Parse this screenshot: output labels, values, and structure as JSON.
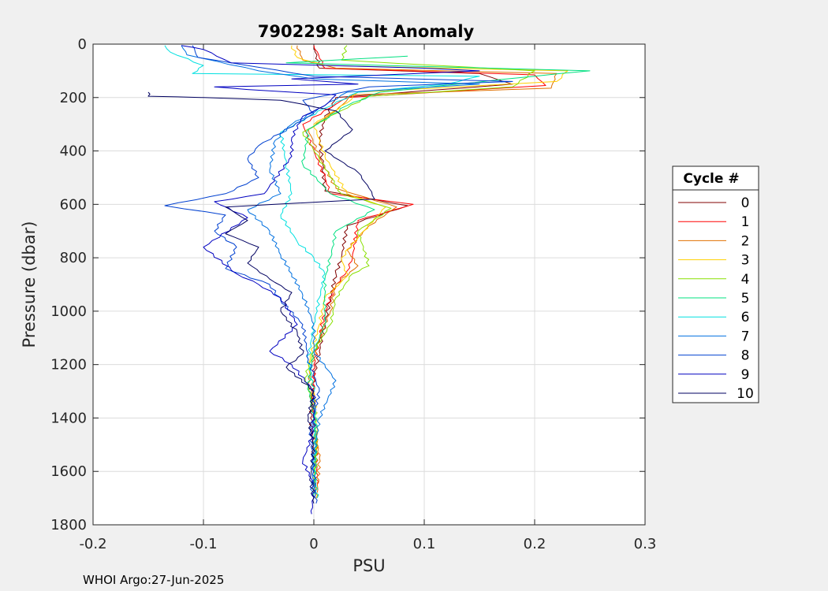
{
  "chart_data": {
    "type": "line",
    "title": "7902298: Salt Anomaly",
    "xlabel": "PSU",
    "ylabel": "Pressure (dbar)",
    "xlim": [
      -0.2,
      0.3
    ],
    "ylim": [
      0,
      1800
    ],
    "y_reversed": true,
    "grid": true,
    "xticks": [
      "-0.2",
      "-0.1",
      "0",
      "0.1",
      "0.2",
      "0.3"
    ],
    "yticks": [
      "0",
      "200",
      "400",
      "600",
      "800",
      "1000",
      "1200",
      "1400",
      "1600",
      "1800"
    ],
    "legend": {
      "title": "Cycle #",
      "placement": "right"
    },
    "series": [
      {
        "name": "0",
        "color": "#800000",
        "points": [
          [
            0.0,
            5
          ],
          [
            0.005,
            90
          ],
          [
            0.15,
            110
          ],
          [
            0.18,
            150
          ],
          [
            0.02,
            200
          ],
          [
            0.01,
            280
          ],
          [
            0.005,
            350
          ],
          [
            0.008,
            450
          ],
          [
            0.01,
            550
          ],
          [
            0.085,
            605
          ],
          [
            0.03,
            680
          ],
          [
            0.025,
            800
          ],
          [
            0.02,
            860
          ],
          [
            0.015,
            950
          ],
          [
            0.01,
            1050
          ],
          [
            0.005,
            1150
          ],
          [
            0.0,
            1250
          ],
          [
            -0.003,
            1400
          ],
          [
            0.0,
            1550
          ],
          [
            0.002,
            1700
          ]
        ]
      },
      {
        "name": "1",
        "color": "#ff0000",
        "points": [
          [
            0.0,
            5
          ],
          [
            0.01,
            90
          ],
          [
            0.2,
            115
          ],
          [
            0.21,
            155
          ],
          [
            0.03,
            200
          ],
          [
            -0.01,
            300
          ],
          [
            0.0,
            400
          ],
          [
            0.01,
            500
          ],
          [
            0.015,
            560
          ],
          [
            0.09,
            600
          ],
          [
            0.04,
            660
          ],
          [
            0.035,
            800
          ],
          [
            0.03,
            850
          ],
          [
            0.02,
            900
          ],
          [
            0.01,
            1000
          ],
          [
            0.005,
            1100
          ],
          [
            0.0,
            1200
          ],
          [
            0.0,
            1350
          ],
          [
            0.002,
            1500
          ],
          [
            0.003,
            1650
          ]
        ]
      },
      {
        "name": "2",
        "color": "#e07000",
        "points": [
          [
            -0.015,
            5
          ],
          [
            -0.01,
            60
          ],
          [
            0.02,
            90
          ],
          [
            0.22,
            110
          ],
          [
            0.215,
            165
          ],
          [
            0.035,
            190
          ],
          [
            0.02,
            250
          ],
          [
            -0.005,
            320
          ],
          [
            0.005,
            420
          ],
          [
            0.02,
            540
          ],
          [
            0.075,
            610
          ],
          [
            0.05,
            680
          ],
          [
            0.03,
            770
          ],
          [
            0.04,
            830
          ],
          [
            0.02,
            900
          ],
          [
            0.015,
            1000
          ],
          [
            0.005,
            1100
          ],
          [
            -0.005,
            1250
          ],
          [
            0.0,
            1400
          ],
          [
            0.005,
            1550
          ],
          [
            0.003,
            1680
          ]
        ]
      },
      {
        "name": "3",
        "color": "#ffd000",
        "points": [
          [
            -0.02,
            5
          ],
          [
            -0.015,
            50
          ],
          [
            0.01,
            80
          ],
          [
            0.23,
            100
          ],
          [
            0.22,
            140
          ],
          [
            0.04,
            180
          ],
          [
            0.03,
            220
          ],
          [
            0.0,
            300
          ],
          [
            0.01,
            420
          ],
          [
            0.03,
            560
          ],
          [
            0.065,
            610
          ],
          [
            0.045,
            700
          ],
          [
            0.025,
            800
          ],
          [
            0.03,
            870
          ],
          [
            0.01,
            950
          ],
          [
            0.005,
            1050
          ],
          [
            -0.005,
            1200
          ],
          [
            0.0,
            1300
          ],
          [
            0.003,
            1450
          ],
          [
            0.0,
            1600
          ],
          [
            0.002,
            1700
          ]
        ]
      },
      {
        "name": "4",
        "color": "#88e000",
        "points": [
          [
            0.03,
            5
          ],
          [
            0.025,
            60
          ],
          [
            0.2,
            100
          ],
          [
            0.18,
            160
          ],
          [
            0.05,
            195
          ],
          [
            0.02,
            260
          ],
          [
            -0.01,
            330
          ],
          [
            0.005,
            430
          ],
          [
            0.025,
            560
          ],
          [
            0.07,
            615
          ],
          [
            0.04,
            700
          ],
          [
            0.05,
            830
          ],
          [
            0.035,
            860
          ],
          [
            0.02,
            950
          ],
          [
            0.015,
            1050
          ],
          [
            0.0,
            1150
          ],
          [
            -0.008,
            1250
          ],
          [
            0.0,
            1350
          ],
          [
            0.003,
            1500
          ],
          [
            0.0,
            1650
          ]
        ]
      },
      {
        "name": "5",
        "color": "#00e080",
        "points": [
          [
            0.085,
            45
          ],
          [
            -0.025,
            70
          ],
          [
            0.25,
            100
          ],
          [
            0.2,
            120
          ],
          [
            0.06,
            180
          ],
          [
            0.03,
            230
          ],
          [
            -0.005,
            320
          ],
          [
            -0.01,
            450
          ],
          [
            0.015,
            560
          ],
          [
            0.055,
            620
          ],
          [
            0.02,
            700
          ],
          [
            0.015,
            800
          ],
          [
            0.01,
            880
          ],
          [
            0.01,
            960
          ],
          [
            0.01,
            1050
          ],
          [
            0.0,
            1150
          ],
          [
            -0.005,
            1280
          ],
          [
            0.0,
            1400
          ],
          [
            0.002,
            1550
          ],
          [
            0.0,
            1700
          ]
        ]
      },
      {
        "name": "6",
        "color": "#00e0e0",
        "points": [
          [
            -0.135,
            5
          ],
          [
            -0.13,
            30
          ],
          [
            -0.1,
            80
          ],
          [
            -0.11,
            110
          ],
          [
            0.15,
            120
          ],
          [
            0.12,
            150
          ],
          [
            0.04,
            180
          ],
          [
            0.01,
            240
          ],
          [
            -0.03,
            330
          ],
          [
            -0.025,
            450
          ],
          [
            -0.02,
            560
          ],
          [
            -0.03,
            640
          ],
          [
            -0.015,
            740
          ],
          [
            0.0,
            800
          ],
          [
            0.01,
            860
          ],
          [
            0.005,
            950
          ],
          [
            0.0,
            1050
          ],
          [
            -0.005,
            1180
          ],
          [
            0.0,
            1300
          ],
          [
            0.002,
            1450
          ],
          [
            0.0,
            1580
          ],
          [
            0.003,
            1700
          ]
        ]
      },
      {
        "name": "7",
        "color": "#0070e0",
        "points": [
          [
            -0.12,
            5
          ],
          [
            -0.115,
            40
          ],
          [
            -0.05,
            100
          ],
          [
            0.0,
            130
          ],
          [
            0.15,
            150
          ],
          [
            0.03,
            180
          ],
          [
            0.01,
            230
          ],
          [
            -0.02,
            300
          ],
          [
            -0.035,
            360
          ],
          [
            -0.04,
            470
          ],
          [
            -0.03,
            560
          ],
          [
            -0.06,
            620
          ],
          [
            -0.04,
            700
          ],
          [
            -0.03,
            790
          ],
          [
            -0.02,
            860
          ],
          [
            -0.01,
            940
          ],
          [
            0.0,
            1050
          ],
          [
            0.0,
            1150
          ],
          [
            0.02,
            1260
          ],
          [
            0.005,
            1400
          ],
          [
            0.0,
            1550
          ],
          [
            -0.002,
            1690
          ]
        ]
      },
      {
        "name": "8",
        "color": "#0040d0",
        "points": [
          [
            -0.11,
            5
          ],
          [
            -0.105,
            50
          ],
          [
            0.0,
            120
          ],
          [
            0.18,
            140
          ],
          [
            0.05,
            160
          ],
          [
            -0.01,
            210
          ],
          [
            0.0,
            260
          ],
          [
            -0.05,
            380
          ],
          [
            -0.06,
            430
          ],
          [
            -0.05,
            500
          ],
          [
            -0.08,
            560
          ],
          [
            -0.135,
            605
          ],
          [
            -0.08,
            640
          ],
          [
            -0.09,
            700
          ],
          [
            -0.07,
            760
          ],
          [
            -0.08,
            840
          ],
          [
            -0.04,
            900
          ],
          [
            -0.03,
            960
          ],
          [
            -0.01,
            1050
          ],
          [
            -0.005,
            1180
          ],
          [
            0.005,
            1300
          ],
          [
            -0.003,
            1450
          ],
          [
            0.0,
            1600
          ],
          [
            0.002,
            1720
          ]
        ]
      },
      {
        "name": "9",
        "color": "#0000c0",
        "points": [
          [
            -0.12,
            5
          ],
          [
            -0.1,
            20
          ],
          [
            -0.075,
            70
          ],
          [
            0.1,
            90
          ],
          [
            0.15,
            100
          ],
          [
            -0.02,
            130
          ],
          [
            0.04,
            150
          ],
          [
            -0.09,
            160
          ],
          [
            -0.06,
            170
          ],
          [
            0.02,
            190
          ],
          [
            0.01,
            230
          ],
          [
            -0.01,
            270
          ],
          [
            -0.02,
            350
          ],
          [
            -0.02,
            420
          ],
          [
            -0.045,
            560
          ],
          [
            -0.09,
            590
          ],
          [
            -0.06,
            650
          ],
          [
            -0.1,
            760
          ],
          [
            -0.07,
            860
          ],
          [
            -0.05,
            900
          ],
          [
            -0.03,
            950
          ],
          [
            -0.015,
            1050
          ],
          [
            -0.04,
            1150
          ],
          [
            -0.02,
            1200
          ],
          [
            0.0,
            1300
          ],
          [
            0.0,
            1450
          ],
          [
            -0.01,
            1560
          ],
          [
            0.0,
            1650
          ],
          [
            -0.002,
            1760
          ]
        ]
      },
      {
        "name": "10",
        "color": "#000060",
        "points": [
          [
            -0.15,
            180
          ],
          [
            -0.15,
            195
          ],
          [
            -0.1,
            200
          ],
          [
            -0.03,
            210
          ],
          [
            0.02,
            250
          ],
          [
            0.035,
            320
          ],
          [
            0.01,
            400
          ],
          [
            0.04,
            480
          ],
          [
            0.05,
            540
          ],
          [
            0.055,
            580
          ],
          [
            -0.08,
            610
          ],
          [
            -0.06,
            660
          ],
          [
            -0.08,
            710
          ],
          [
            -0.05,
            760
          ],
          [
            -0.06,
            820
          ],
          [
            -0.04,
            880
          ],
          [
            -0.02,
            930
          ],
          [
            -0.03,
            1000
          ],
          [
            -0.015,
            1080
          ],
          [
            -0.01,
            1160
          ],
          [
            -0.025,
            1210
          ],
          [
            0.0,
            1300
          ],
          [
            -0.005,
            1400
          ],
          [
            0.0,
            1500
          ],
          [
            -0.003,
            1620
          ],
          [
            0.0,
            1720
          ]
        ]
      }
    ]
  },
  "footer": {
    "text": "WHOI Argo:27-Jun-2025"
  }
}
